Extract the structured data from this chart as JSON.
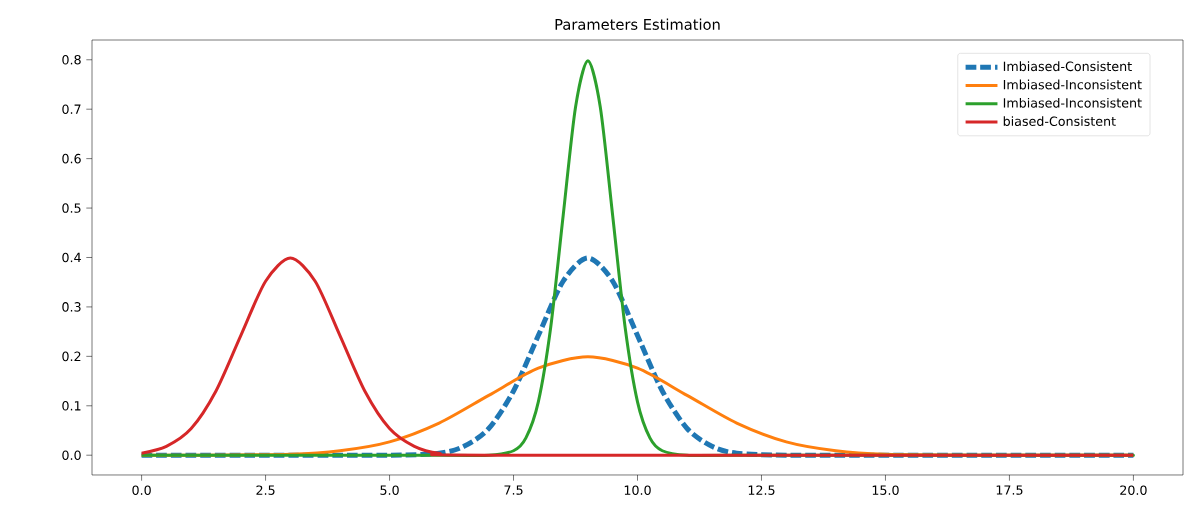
{
  "chart_data": {
    "type": "line",
    "title": "Parameters Estimation",
    "legend": "top right",
    "marker": "none",
    "xlim": [
      -1,
      21
    ],
    "ylim": [
      -0.04,
      0.84
    ],
    "xticks": [
      {
        "value": 0,
        "label": "0.0"
      },
      {
        "value": 2.5,
        "label": "2.5"
      },
      {
        "value": 5,
        "label": "5.0"
      },
      {
        "value": 7.5,
        "label": "7.5"
      },
      {
        "value": 10,
        "label": "10.0"
      },
      {
        "value": 12.5,
        "label": "12.5"
      },
      {
        "value": 15,
        "label": "15.0"
      },
      {
        "value": 17.5,
        "label": "17.5"
      },
      {
        "value": 20,
        "label": "20.0"
      }
    ],
    "yticks": [
      {
        "value": 0,
        "label": "0.0"
      },
      {
        "value": 0.1,
        "label": "0.1"
      },
      {
        "value": 0.2,
        "label": "0.2"
      },
      {
        "value": 0.3,
        "label": "0.3"
      },
      {
        "value": 0.4,
        "label": "0.4"
      },
      {
        "value": 0.5,
        "label": "0.5"
      },
      {
        "value": 0.6,
        "label": "0.6"
      },
      {
        "value": 0.7,
        "label": "0.7"
      },
      {
        "value": 0.8,
        "label": "0.8"
      }
    ],
    "series": [
      {
        "name": "Imbiased-Consistent",
        "color": "#1f77b4",
        "line_style": "dashed",
        "x": [
          0,
          3,
          5,
          6,
          6.5,
          7,
          7.5,
          8,
          8.5,
          9,
          9.5,
          10,
          10.5,
          11,
          11.5,
          12,
          13,
          15,
          20
        ],
        "values": [
          0,
          0,
          0,
          0.004,
          0.018,
          0.054,
          0.13,
          0.242,
          0.352,
          0.399,
          0.352,
          0.242,
          0.13,
          0.054,
          0.018,
          0.004,
          0,
          0,
          0
        ]
      },
      {
        "name": "Imbiased-Inconsistent",
        "color": "#ff7f0e",
        "line_style": "solid",
        "x": [
          0,
          1,
          3,
          4,
          5,
          6,
          7,
          8,
          9,
          10,
          11,
          12,
          13,
          14,
          15,
          17,
          20
        ],
        "values": [
          0,
          0,
          0.002,
          0.009,
          0.027,
          0.065,
          0.121,
          0.176,
          0.199,
          0.176,
          0.121,
          0.065,
          0.027,
          0.009,
          0.002,
          0,
          0
        ]
      },
      {
        "name": "Imbiased-Inconsistent",
        "color": "#2ca02c",
        "line_style": "solid",
        "x": [
          0,
          6,
          7,
          7.5,
          7.75,
          8,
          8.25,
          8.5,
          8.75,
          9,
          9.25,
          9.5,
          9.75,
          10,
          10.25,
          10.5,
          11,
          12,
          20
        ],
        "values": [
          0,
          0,
          0,
          0.009,
          0.035,
          0.108,
          0.259,
          0.484,
          0.704,
          0.798,
          0.704,
          0.484,
          0.259,
          0.108,
          0.035,
          0.009,
          0,
          0,
          0
        ]
      },
      {
        "name": "biased-Consistent",
        "color": "#d62728",
        "line_style": "solid",
        "x": [
          0,
          0.5,
          1,
          1.5,
          2,
          2.5,
          3,
          3.5,
          4,
          4.5,
          5,
          5.5,
          6,
          7,
          20
        ],
        "values": [
          0.004,
          0.018,
          0.054,
          0.13,
          0.242,
          0.352,
          0.399,
          0.352,
          0.242,
          0.13,
          0.054,
          0.018,
          0.004,
          0,
          0
        ]
      }
    ]
  }
}
